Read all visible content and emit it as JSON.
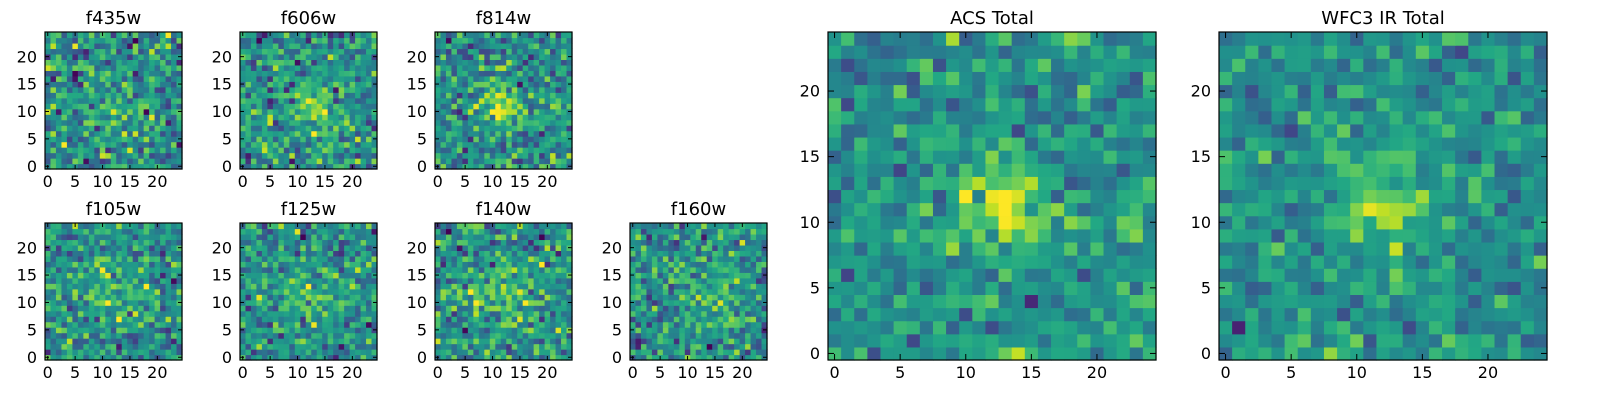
{
  "chart_data": [
    {
      "type": "heatmap",
      "title": "f435w",
      "xticks": [
        "0",
        "5",
        "10",
        "15",
        "20"
      ],
      "yticks": [
        "0",
        "5",
        "10",
        "15",
        "20"
      ],
      "xlim": [
        -0.5,
        24.5
      ],
      "ylim": [
        -0.5,
        24.5
      ],
      "colormap": "viridis",
      "z_range": [
        -3,
        3
      ],
      "peak": {
        "x": 12,
        "y": 11,
        "amplitude": 1.0,
        "sigma": 3.0
      },
      "noise": 1.1,
      "seed": 11
    },
    {
      "type": "heatmap",
      "title": "f606w",
      "xticks": [
        "0",
        "5",
        "10",
        "15",
        "20"
      ],
      "yticks": [
        "0",
        "5",
        "10",
        "15",
        "20"
      ],
      "xlim": [
        -0.5,
        24.5
      ],
      "ylim": [
        -0.5,
        24.5
      ],
      "colormap": "viridis",
      "z_range": [
        -3,
        3
      ],
      "peak": {
        "x": 13,
        "y": 11,
        "amplitude": 1.7,
        "sigma": 2.8
      },
      "noise": 1.0,
      "seed": 23
    },
    {
      "type": "heatmap",
      "title": "f814w",
      "xticks": [
        "0",
        "5",
        "10",
        "15",
        "20"
      ],
      "yticks": [
        "0",
        "5",
        "10",
        "15",
        "20"
      ],
      "xlim": [
        -0.5,
        24.5
      ],
      "ylim": [
        -0.5,
        24.5
      ],
      "colormap": "viridis",
      "z_range": [
        -3,
        3
      ],
      "peak": {
        "x": 12,
        "y": 11,
        "amplitude": 1.8,
        "sigma": 2.8
      },
      "noise": 1.0,
      "seed": 37
    },
    {
      "type": "heatmap",
      "title": "f105w",
      "xticks": [
        "0",
        "5",
        "10",
        "15",
        "20"
      ],
      "yticks": [
        "0",
        "5",
        "10",
        "15",
        "20"
      ],
      "xlim": [
        -0.5,
        24.5
      ],
      "ylim": [
        -0.5,
        24.5
      ],
      "colormap": "viridis",
      "z_range": [
        -3,
        3
      ],
      "peak": {
        "x": 13,
        "y": 12,
        "amplitude": 1.2,
        "sigma": 3.5
      },
      "noise": 1.0,
      "seed": 41
    },
    {
      "type": "heatmap",
      "title": "f125w",
      "xticks": [
        "0",
        "5",
        "10",
        "15",
        "20"
      ],
      "yticks": [
        "0",
        "5",
        "10",
        "15",
        "20"
      ],
      "xlim": [
        -0.5,
        24.5
      ],
      "ylim": [
        -0.5,
        24.5
      ],
      "colormap": "viridis",
      "z_range": [
        -3,
        3
      ],
      "peak": {
        "x": 12,
        "y": 11,
        "amplitude": 1.0,
        "sigma": 3.5
      },
      "noise": 1.0,
      "seed": 53
    },
    {
      "type": "heatmap",
      "title": "f140w",
      "xticks": [
        "0",
        "5",
        "10",
        "15",
        "20"
      ],
      "yticks": [
        "0",
        "5",
        "10",
        "15",
        "20"
      ],
      "xlim": [
        -0.5,
        24.5
      ],
      "ylim": [
        -0.5,
        24.5
      ],
      "colormap": "viridis",
      "z_range": [
        -3,
        3
      ],
      "peak": {
        "x": 12,
        "y": 12,
        "amplitude": 1.0,
        "sigma": 3.5
      },
      "noise": 1.0,
      "seed": 67
    },
    {
      "type": "heatmap",
      "title": "f160w",
      "xticks": [
        "0",
        "5",
        "10",
        "15",
        "20"
      ],
      "yticks": [
        "0",
        "5",
        "10",
        "15",
        "20"
      ],
      "xlim": [
        -0.5,
        24.5
      ],
      "ylim": [
        -0.5,
        24.5
      ],
      "colormap": "viridis",
      "z_range": [
        -3,
        3
      ],
      "peak": {
        "x": 13,
        "y": 11,
        "amplitude": 1.1,
        "sigma": 3.5
      },
      "noise": 1.0,
      "seed": 79
    },
    {
      "type": "heatmap",
      "title": "ACS Total",
      "xticks": [
        "0",
        "5",
        "10",
        "15",
        "20"
      ],
      "yticks": [
        "0",
        "5",
        "10",
        "15",
        "20"
      ],
      "xlim": [
        -0.5,
        24.5
      ],
      "ylim": [
        -0.5,
        24.5
      ],
      "colormap": "viridis",
      "z_range": [
        -3,
        3
      ],
      "peak": {
        "x": 13,
        "y": 11,
        "amplitude": 2.2,
        "sigma": 2.6
      },
      "noise": 0.8,
      "seed": 97
    },
    {
      "type": "heatmap",
      "title": "WFC3 IR Total",
      "xticks": [
        "0",
        "5",
        "10",
        "15",
        "20"
      ],
      "yticks": [
        "0",
        "5",
        "10",
        "15",
        "20"
      ],
      "xlim": [
        -0.5,
        24.5
      ],
      "ylim": [
        -0.5,
        24.5
      ],
      "colormap": "viridis",
      "z_range": [
        -3,
        3
      ],
      "peak": {
        "x": 12,
        "y": 12,
        "amplitude": 2.0,
        "sigma": 2.6
      },
      "noise": 0.7,
      "seed": 113
    }
  ]
}
